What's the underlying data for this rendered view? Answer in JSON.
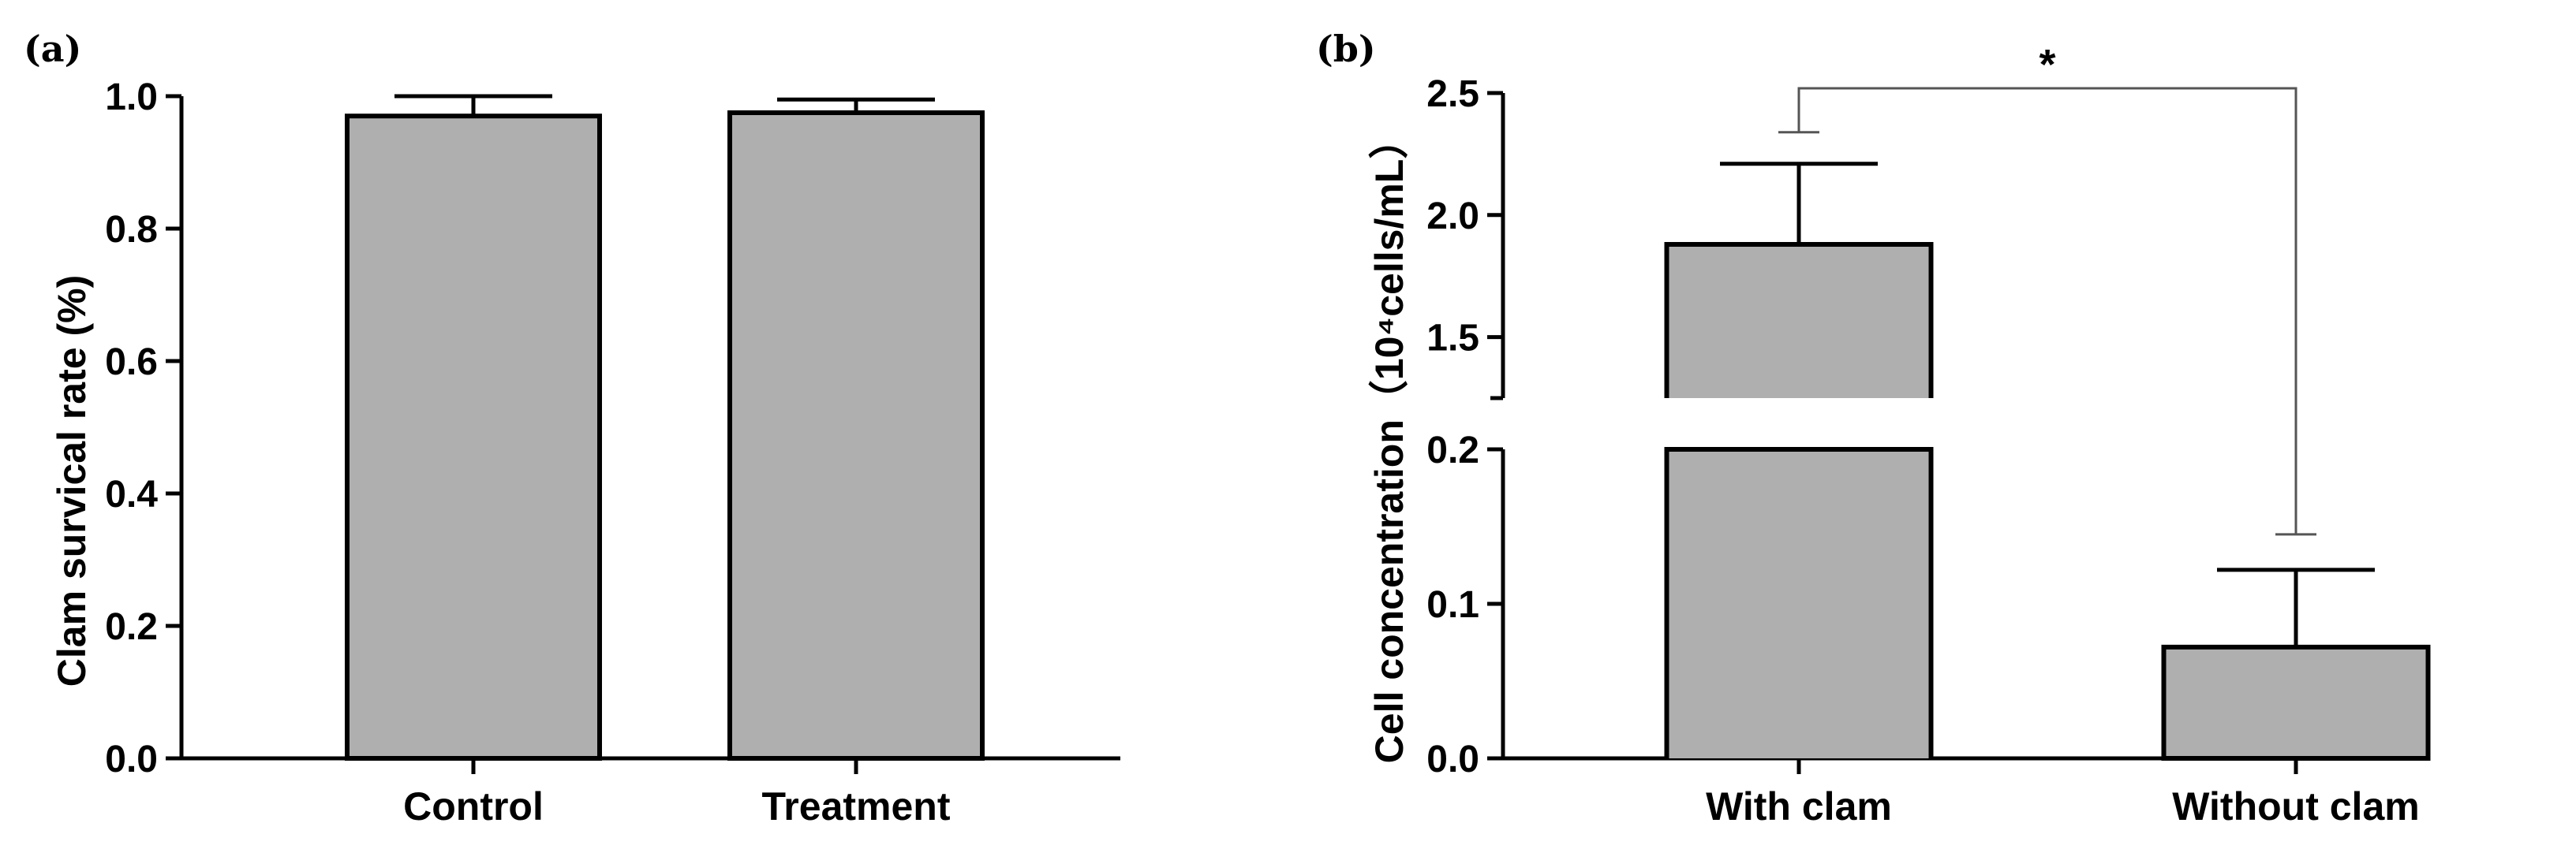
{
  "chart_data": [
    {
      "panel": "(a)",
      "type": "bar",
      "categories": [
        "Control",
        "Treatment"
      ],
      "values": [
        0.97,
        0.975
      ],
      "errors": [
        0.03,
        0.02
      ],
      "ylabel": "Clam survical rate (%)",
      "ylim": [
        0,
        1.0
      ],
      "yticks": [
        "0.0",
        "0.2",
        "0.4",
        "0.6",
        "0.8",
        "1.0"
      ],
      "bar_color": "#afafaf"
    },
    {
      "panel": "(b)",
      "type": "bar",
      "categories": [
        "With clam",
        "Without clam"
      ],
      "values": [
        1.88,
        0.072
      ],
      "errors": [
        0.33,
        0.05
      ],
      "ylabel": "Cell concentration（10⁴cells/mL）",
      "y_axis_break": {
        "lower_range": [
          0,
          0.2
        ],
        "upper_range": [
          1.25,
          2.5
        ],
        "lower_ticks": [
          "0.0",
          "0.1",
          "0.2"
        ],
        "upper_ticks": [
          "1.5",
          "2.0",
          "2.5"
        ]
      },
      "significance": {
        "label": "*",
        "between": [
          "With clam",
          "Without clam"
        ]
      },
      "bar_color": "#afafaf"
    }
  ]
}
